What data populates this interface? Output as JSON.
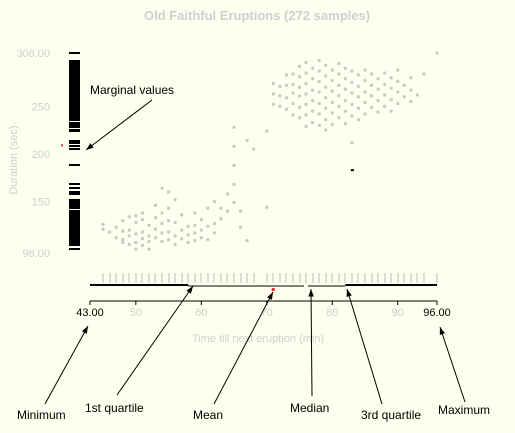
{
  "chart_data": {
    "type": "scatter",
    "title": "Old Faithful Eruptions (272 samples)",
    "xlabel": "Time till next eruption (min)",
    "ylabel": "Duration (sec)",
    "xlim": [
      43,
      96
    ],
    "ylim": [
      96,
      306
    ],
    "x_ticks": [
      "43.00",
      "50",
      "60",
      "70",
      "80",
      "90",
      "96.00"
    ],
    "y_ticks": [
      "306.00",
      "250",
      "200",
      "150",
      "96.00"
    ],
    "summary": {
      "min": 43,
      "q1": 58,
      "mean": 70.9,
      "median": 76,
      "q3": 82,
      "max": 96,
      "y_mean": 209
    },
    "outlier": [
      83,
      183
    ],
    "points": [
      [
        45,
        126
      ],
      [
        45,
        121
      ],
      [
        46,
        118
      ],
      [
        47,
        123
      ],
      [
        47,
        112
      ],
      [
        48,
        130
      ],
      [
        48,
        119
      ],
      [
        48,
        110
      ],
      [
        48,
        107
      ],
      [
        49,
        134
      ],
      [
        49,
        120
      ],
      [
        49,
        114
      ],
      [
        49,
        105
      ],
      [
        50,
        135
      ],
      [
        50,
        128
      ],
      [
        50,
        116
      ],
      [
        50,
        107
      ],
      [
        50,
        100
      ],
      [
        51,
        138
      ],
      [
        51,
        131
      ],
      [
        51,
        118
      ],
      [
        51,
        111
      ],
      [
        51,
        104
      ],
      [
        52,
        125
      ],
      [
        52,
        114
      ],
      [
        52,
        108
      ],
      [
        52,
        100
      ],
      [
        53,
        146
      ],
      [
        53,
        133
      ],
      [
        53,
        121
      ],
      [
        53,
        112
      ],
      [
        54,
        164
      ],
      [
        54,
        138
      ],
      [
        54,
        127
      ],
      [
        54,
        117
      ],
      [
        54,
        108
      ],
      [
        55,
        160
      ],
      [
        55,
        143
      ],
      [
        55,
        130
      ],
      [
        55,
        118
      ],
      [
        55,
        110
      ],
      [
        56,
        152
      ],
      [
        56,
        128
      ],
      [
        56,
        114
      ],
      [
        56,
        105
      ],
      [
        57,
        136
      ],
      [
        57,
        120
      ],
      [
        57,
        111
      ],
      [
        58,
        124
      ],
      [
        58,
        115
      ],
      [
        58,
        107
      ],
      [
        59,
        138
      ],
      [
        59,
        125
      ],
      [
        59,
        117
      ],
      [
        59,
        109
      ],
      [
        60,
        131
      ],
      [
        60,
        120
      ],
      [
        60,
        112
      ],
      [
        61,
        143
      ],
      [
        61,
        124
      ],
      [
        61,
        110
      ],
      [
        62,
        150
      ],
      [
        62,
        127
      ],
      [
        62,
        117
      ],
      [
        63,
        143
      ],
      [
        63,
        132
      ],
      [
        64,
        158
      ],
      [
        64,
        140
      ],
      [
        65,
        228
      ],
      [
        65,
        208
      ],
      [
        65,
        188
      ],
      [
        65,
        168
      ],
      [
        65,
        149
      ],
      [
        66,
        140
      ],
      [
        66,
        123
      ],
      [
        67,
        109
      ],
      [
        67,
        214
      ],
      [
        68,
        205
      ],
      [
        70,
        144
      ],
      [
        70,
        224
      ],
      [
        71,
        274
      ],
      [
        71,
        263
      ],
      [
        71,
        252
      ],
      [
        72,
        271
      ],
      [
        72,
        261
      ],
      [
        72,
        250
      ],
      [
        73,
        283
      ],
      [
        73,
        272
      ],
      [
        73,
        259
      ],
      [
        73,
        247
      ],
      [
        74,
        284
      ],
      [
        74,
        273
      ],
      [
        74,
        264
      ],
      [
        74,
        253
      ],
      [
        74,
        241
      ],
      [
        75,
        292
      ],
      [
        75,
        281
      ],
      [
        75,
        270
      ],
      [
        75,
        261
      ],
      [
        75,
        249
      ],
      [
        75,
        238
      ],
      [
        76,
        296
      ],
      [
        76,
        285
      ],
      [
        76,
        274
      ],
      [
        76,
        263
      ],
      [
        76,
        252
      ],
      [
        76,
        241
      ],
      [
        76,
        229
      ],
      [
        77,
        290
      ],
      [
        77,
        279
      ],
      [
        77,
        267
      ],
      [
        77,
        256
      ],
      [
        77,
        245
      ],
      [
        77,
        233
      ],
      [
        78,
        298
      ],
      [
        78,
        287
      ],
      [
        78,
        276
      ],
      [
        78,
        265
      ],
      [
        78,
        253
      ],
      [
        78,
        242
      ],
      [
        78,
        230
      ],
      [
        79,
        293
      ],
      [
        79,
        282
      ],
      [
        79,
        270
      ],
      [
        79,
        259
      ],
      [
        79,
        248
      ],
      [
        79,
        236
      ],
      [
        79,
        225
      ],
      [
        80,
        288
      ],
      [
        80,
        277
      ],
      [
        80,
        266
      ],
      [
        80,
        254
      ],
      [
        80,
        243
      ],
      [
        80,
        231
      ],
      [
        81,
        295
      ],
      [
        81,
        284
      ],
      [
        81,
        272
      ],
      [
        81,
        261
      ],
      [
        81,
        250
      ],
      [
        81,
        238
      ],
      [
        82,
        290
      ],
      [
        82,
        279
      ],
      [
        82,
        268
      ],
      [
        82,
        256
      ],
      [
        82,
        245
      ],
      [
        82,
        232
      ],
      [
        83,
        287
      ],
      [
        83,
        275
      ],
      [
        83,
        264
      ],
      [
        83,
        252
      ],
      [
        83,
        240
      ],
      [
        83,
        212
      ],
      [
        84,
        283
      ],
      [
        84,
        271
      ],
      [
        84,
        260
      ],
      [
        84,
        248
      ],
      [
        84,
        236
      ],
      [
        85,
        288
      ],
      [
        85,
        277
      ],
      [
        85,
        265
      ],
      [
        85,
        254
      ],
      [
        85,
        242
      ],
      [
        86,
        284
      ],
      [
        86,
        272
      ],
      [
        86,
        261
      ],
      [
        86,
        249
      ],
      [
        87,
        279
      ],
      [
        87,
        268
      ],
      [
        87,
        256
      ],
      [
        87,
        244
      ],
      [
        88,
        285
      ],
      [
        88,
        273
      ],
      [
        88,
        262
      ],
      [
        88,
        250
      ],
      [
        89,
        280
      ],
      [
        89,
        269
      ],
      [
        89,
        257
      ],
      [
        89,
        245
      ],
      [
        90,
        288
      ],
      [
        90,
        276
      ],
      [
        90,
        265
      ],
      [
        90,
        253
      ],
      [
        91,
        272
      ],
      [
        91,
        260
      ],
      [
        92,
        280
      ],
      [
        92,
        267
      ],
      [
        92,
        255
      ],
      [
        93,
        262
      ],
      [
        94,
        284
      ],
      [
        96,
        306
      ]
    ]
  }
}
